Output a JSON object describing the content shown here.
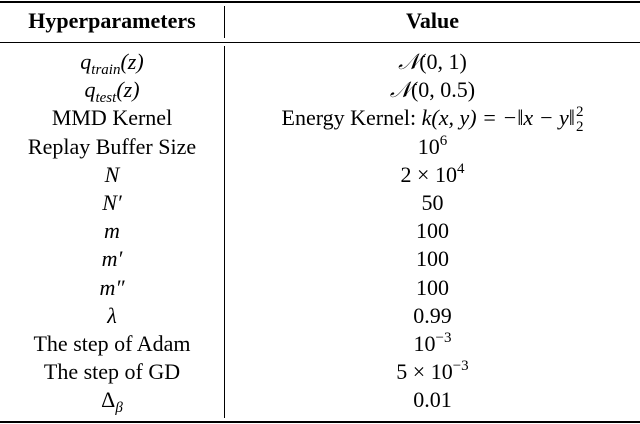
{
  "header": {
    "col1": "Hyperparameters",
    "col2": "Value"
  },
  "rows": [
    {
      "key": {
        "base": "q",
        "sub": "train",
        "rest": "(z)"
      },
      "value": {
        "sym": "𝒩",
        "rest": "(0, 1)"
      }
    },
    {
      "key": {
        "base": "q",
        "sub": "test",
        "rest": "(z)"
      },
      "value": {
        "sym": "𝒩",
        "rest": "(0, 0.5)"
      }
    },
    {
      "key": {
        "text": "MMD Kernel"
      },
      "value": {
        "text": "Energy Kernel: ",
        "math": "k(x, y) = −‖x − y‖",
        "sup": "2",
        "sub": "2"
      }
    },
    {
      "key": {
        "text": "Replay Buffer Size"
      },
      "value": {
        "base": "10",
        "sup": "6"
      }
    },
    {
      "key": {
        "base": "N"
      },
      "value": {
        "base": "2 × 10",
        "sup": "4"
      }
    },
    {
      "key": {
        "base": "N′"
      },
      "value": {
        "text": "50"
      }
    },
    {
      "key": {
        "base": "m"
      },
      "value": {
        "text": "100"
      }
    },
    {
      "key": {
        "base": "m′"
      },
      "value": {
        "text": "100"
      }
    },
    {
      "key": {
        "base": "m″"
      },
      "value": {
        "text": "100"
      }
    },
    {
      "key": {
        "base": "λ"
      },
      "value": {
        "text": "0.99"
      }
    },
    {
      "key": {
        "text": "The step of Adam"
      },
      "value": {
        "base": "10",
        "sup": "−3"
      }
    },
    {
      "key": {
        "text": "The step of GD"
      },
      "value": {
        "base": "5 × 10",
        "sup": "−3"
      }
    },
    {
      "key": {
        "base": "Δ",
        "sub": "β"
      },
      "value": {
        "text": "0.01"
      }
    }
  ]
}
